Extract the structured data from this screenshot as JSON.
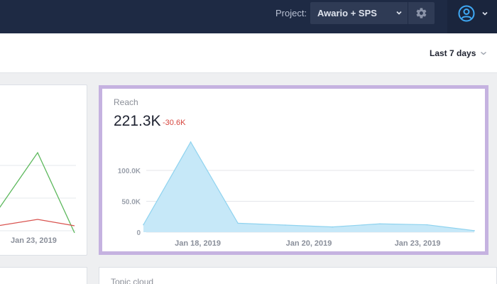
{
  "header": {
    "project_label": "Project:",
    "project_value": "Awario + SPS",
    "icons": [
      "chevron-down-icon",
      "gear-icon",
      "user-circle-icon"
    ]
  },
  "toolbar": {
    "range_label": "Last 7 days"
  },
  "left_card": {
    "tick_label": "Jan 23, 2019"
  },
  "reach": {
    "title": "Reach",
    "value": "221.3K",
    "delta": "-30.6K"
  },
  "topic_cloud": {
    "title": "Topic cloud"
  },
  "colors": {
    "accent_border": "#c5b2e0",
    "area_fill": "#c6e8f8",
    "area_stroke": "#8fd3ef",
    "delta_negative": "#d6453d",
    "line_green": "#5cb85c",
    "line_red": "#d9534f"
  },
  "chart_data": {
    "type": "area",
    "title": "Reach",
    "x_ticks": [
      "Jan 18, 2019",
      "Jan 20, 2019",
      "Jan 23, 2019"
    ],
    "y_ticks": [
      "0",
      "50.0K",
      "100.0K"
    ],
    "ylim": [
      0,
      110000
    ],
    "grid": true,
    "series": [
      {
        "values": [
          12000,
          146000,
          14500,
          11500,
          8500,
          13500,
          12000,
          2500
        ]
      }
    ]
  }
}
